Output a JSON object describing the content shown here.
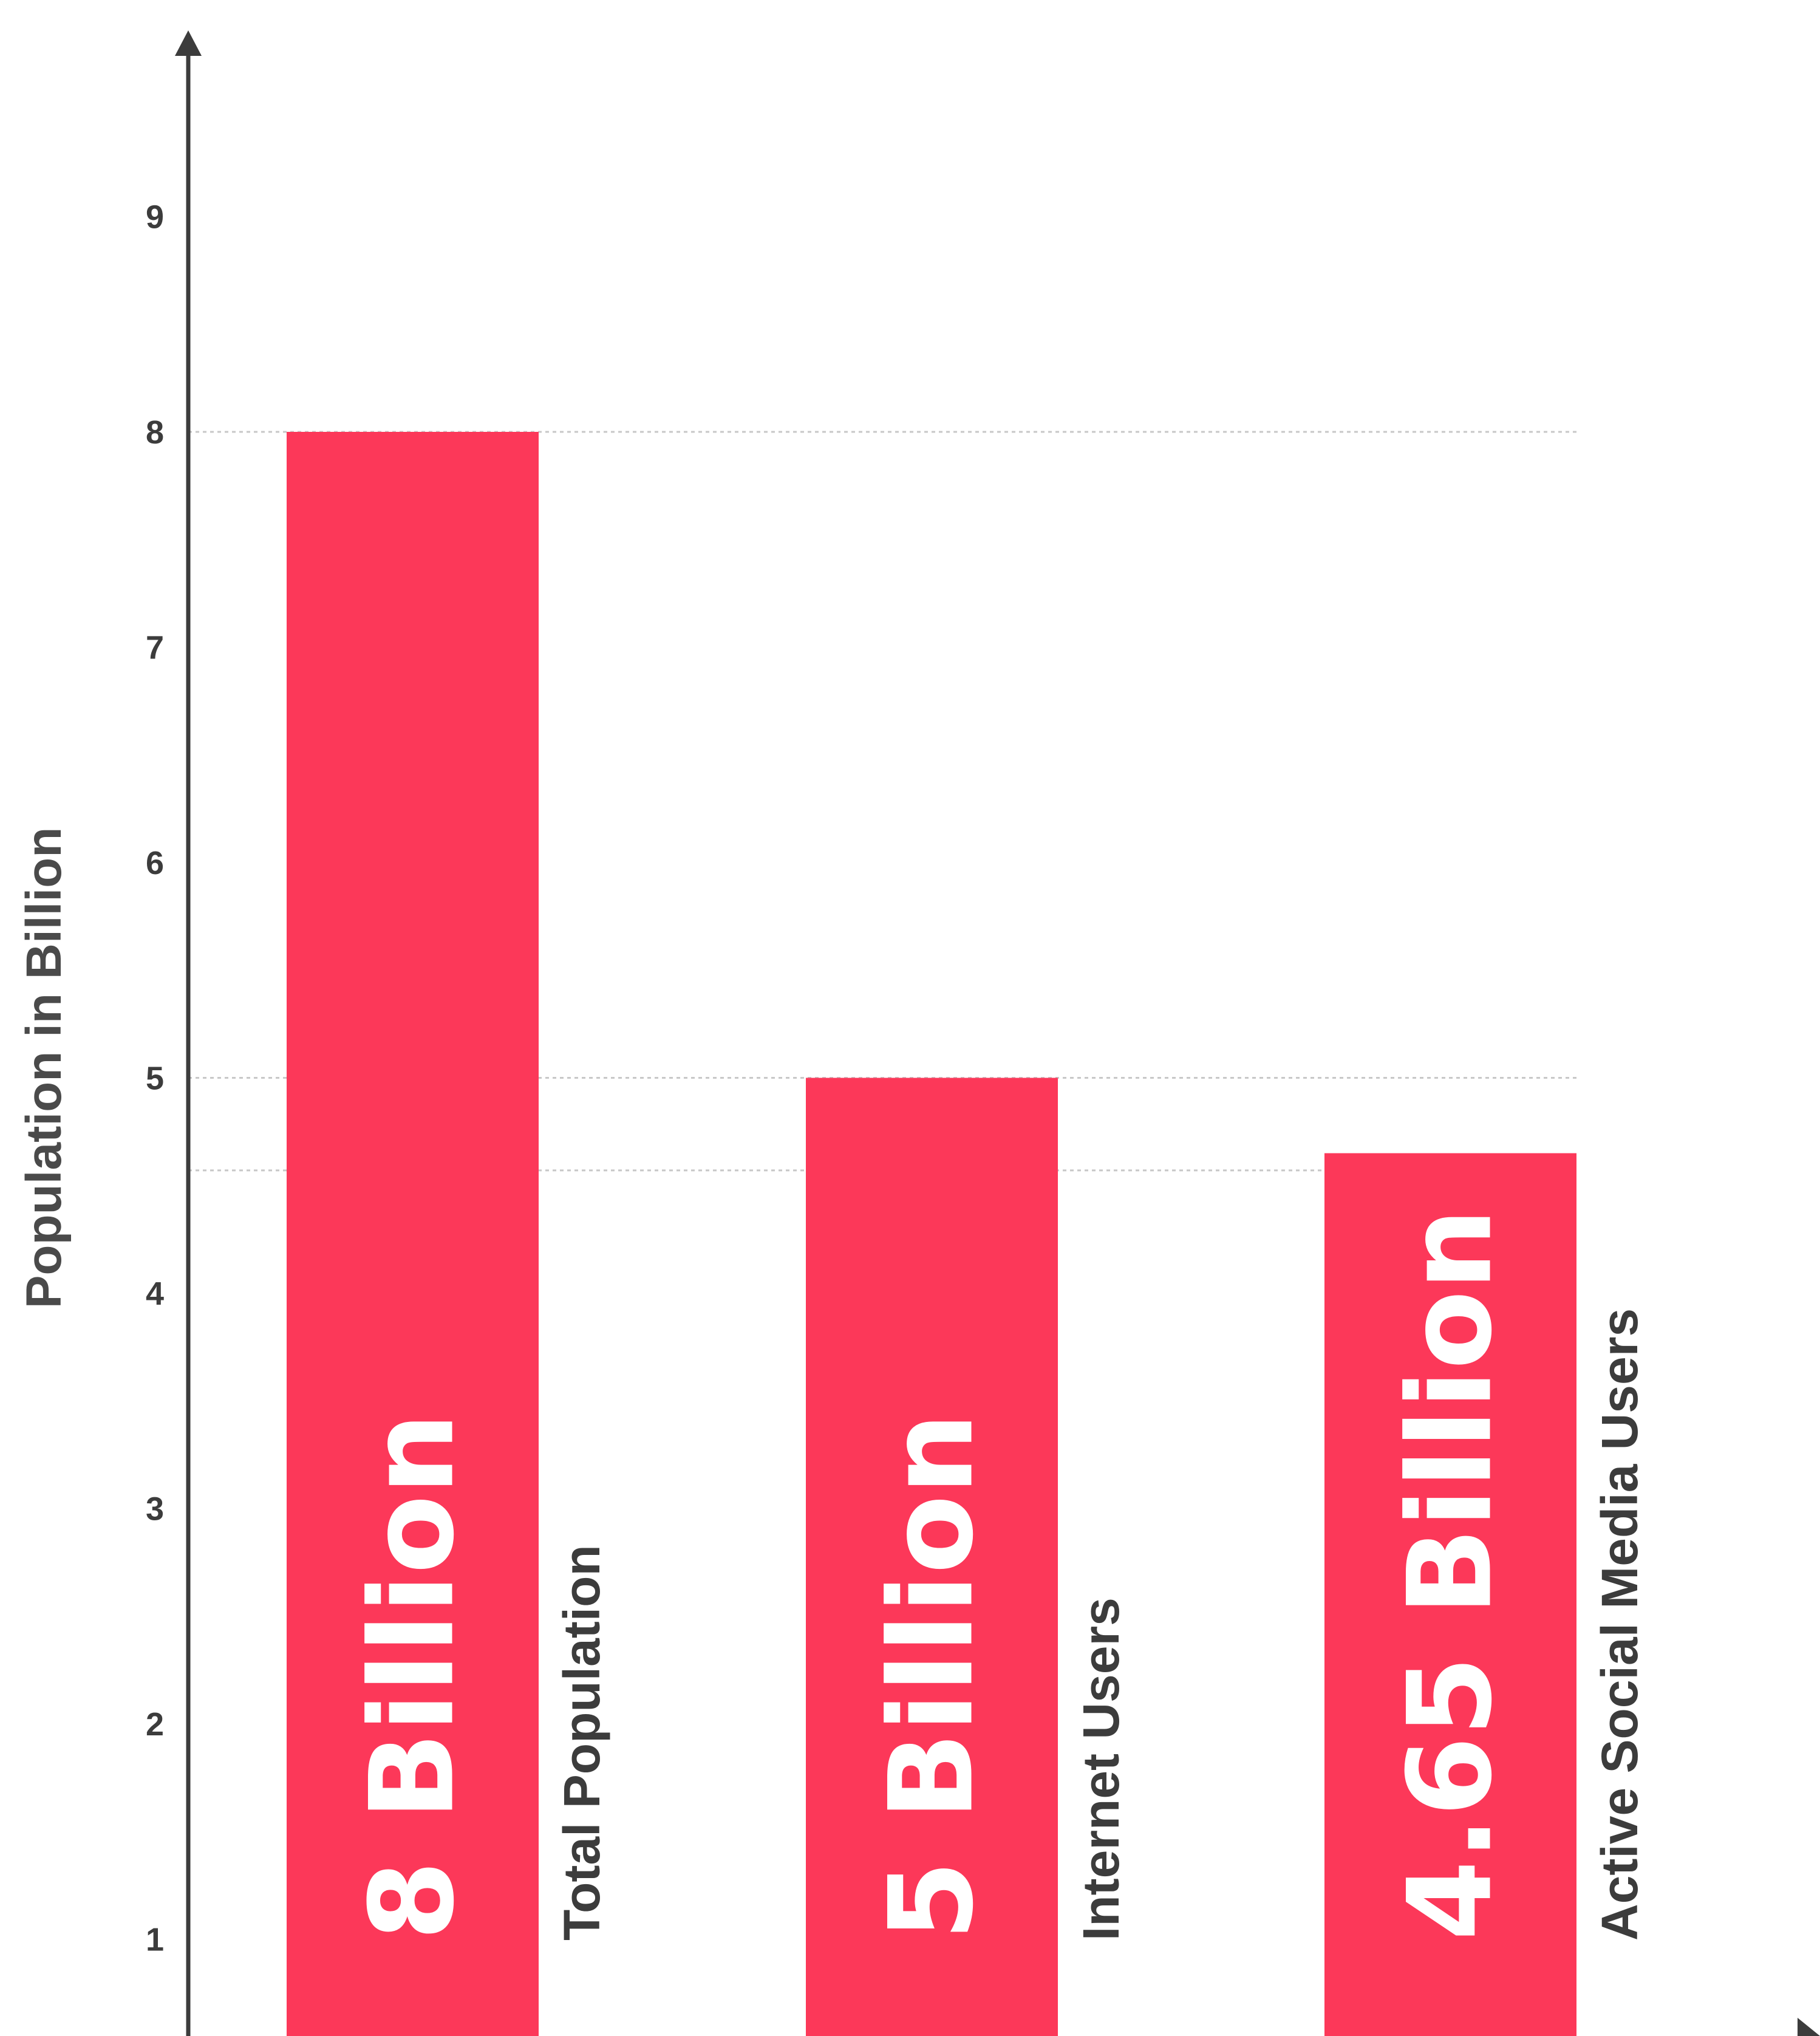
{
  "chart_data": {
    "type": "bar",
    "categories": [
      "Total Population",
      "Internet Users",
      "Active Social Media Users"
    ],
    "values": [
      8,
      5,
      4.65
    ],
    "value_labels": [
      "8 Billion",
      "5 Billion",
      "4.65 Billion"
    ],
    "ylabel": "Population in Billion",
    "y_ticks": [
      "1",
      "2",
      "3",
      "4",
      "5",
      "6",
      "7",
      "8",
      "9"
    ],
    "ylim": [
      0,
      9.6
    ],
    "reference_lines": [
      8,
      5,
      4.57
    ],
    "colors": {
      "bar": "#fc3859",
      "axis": "#3c3c3c",
      "gridline": "#c8c8c8",
      "value_text": "#ffffff"
    }
  }
}
